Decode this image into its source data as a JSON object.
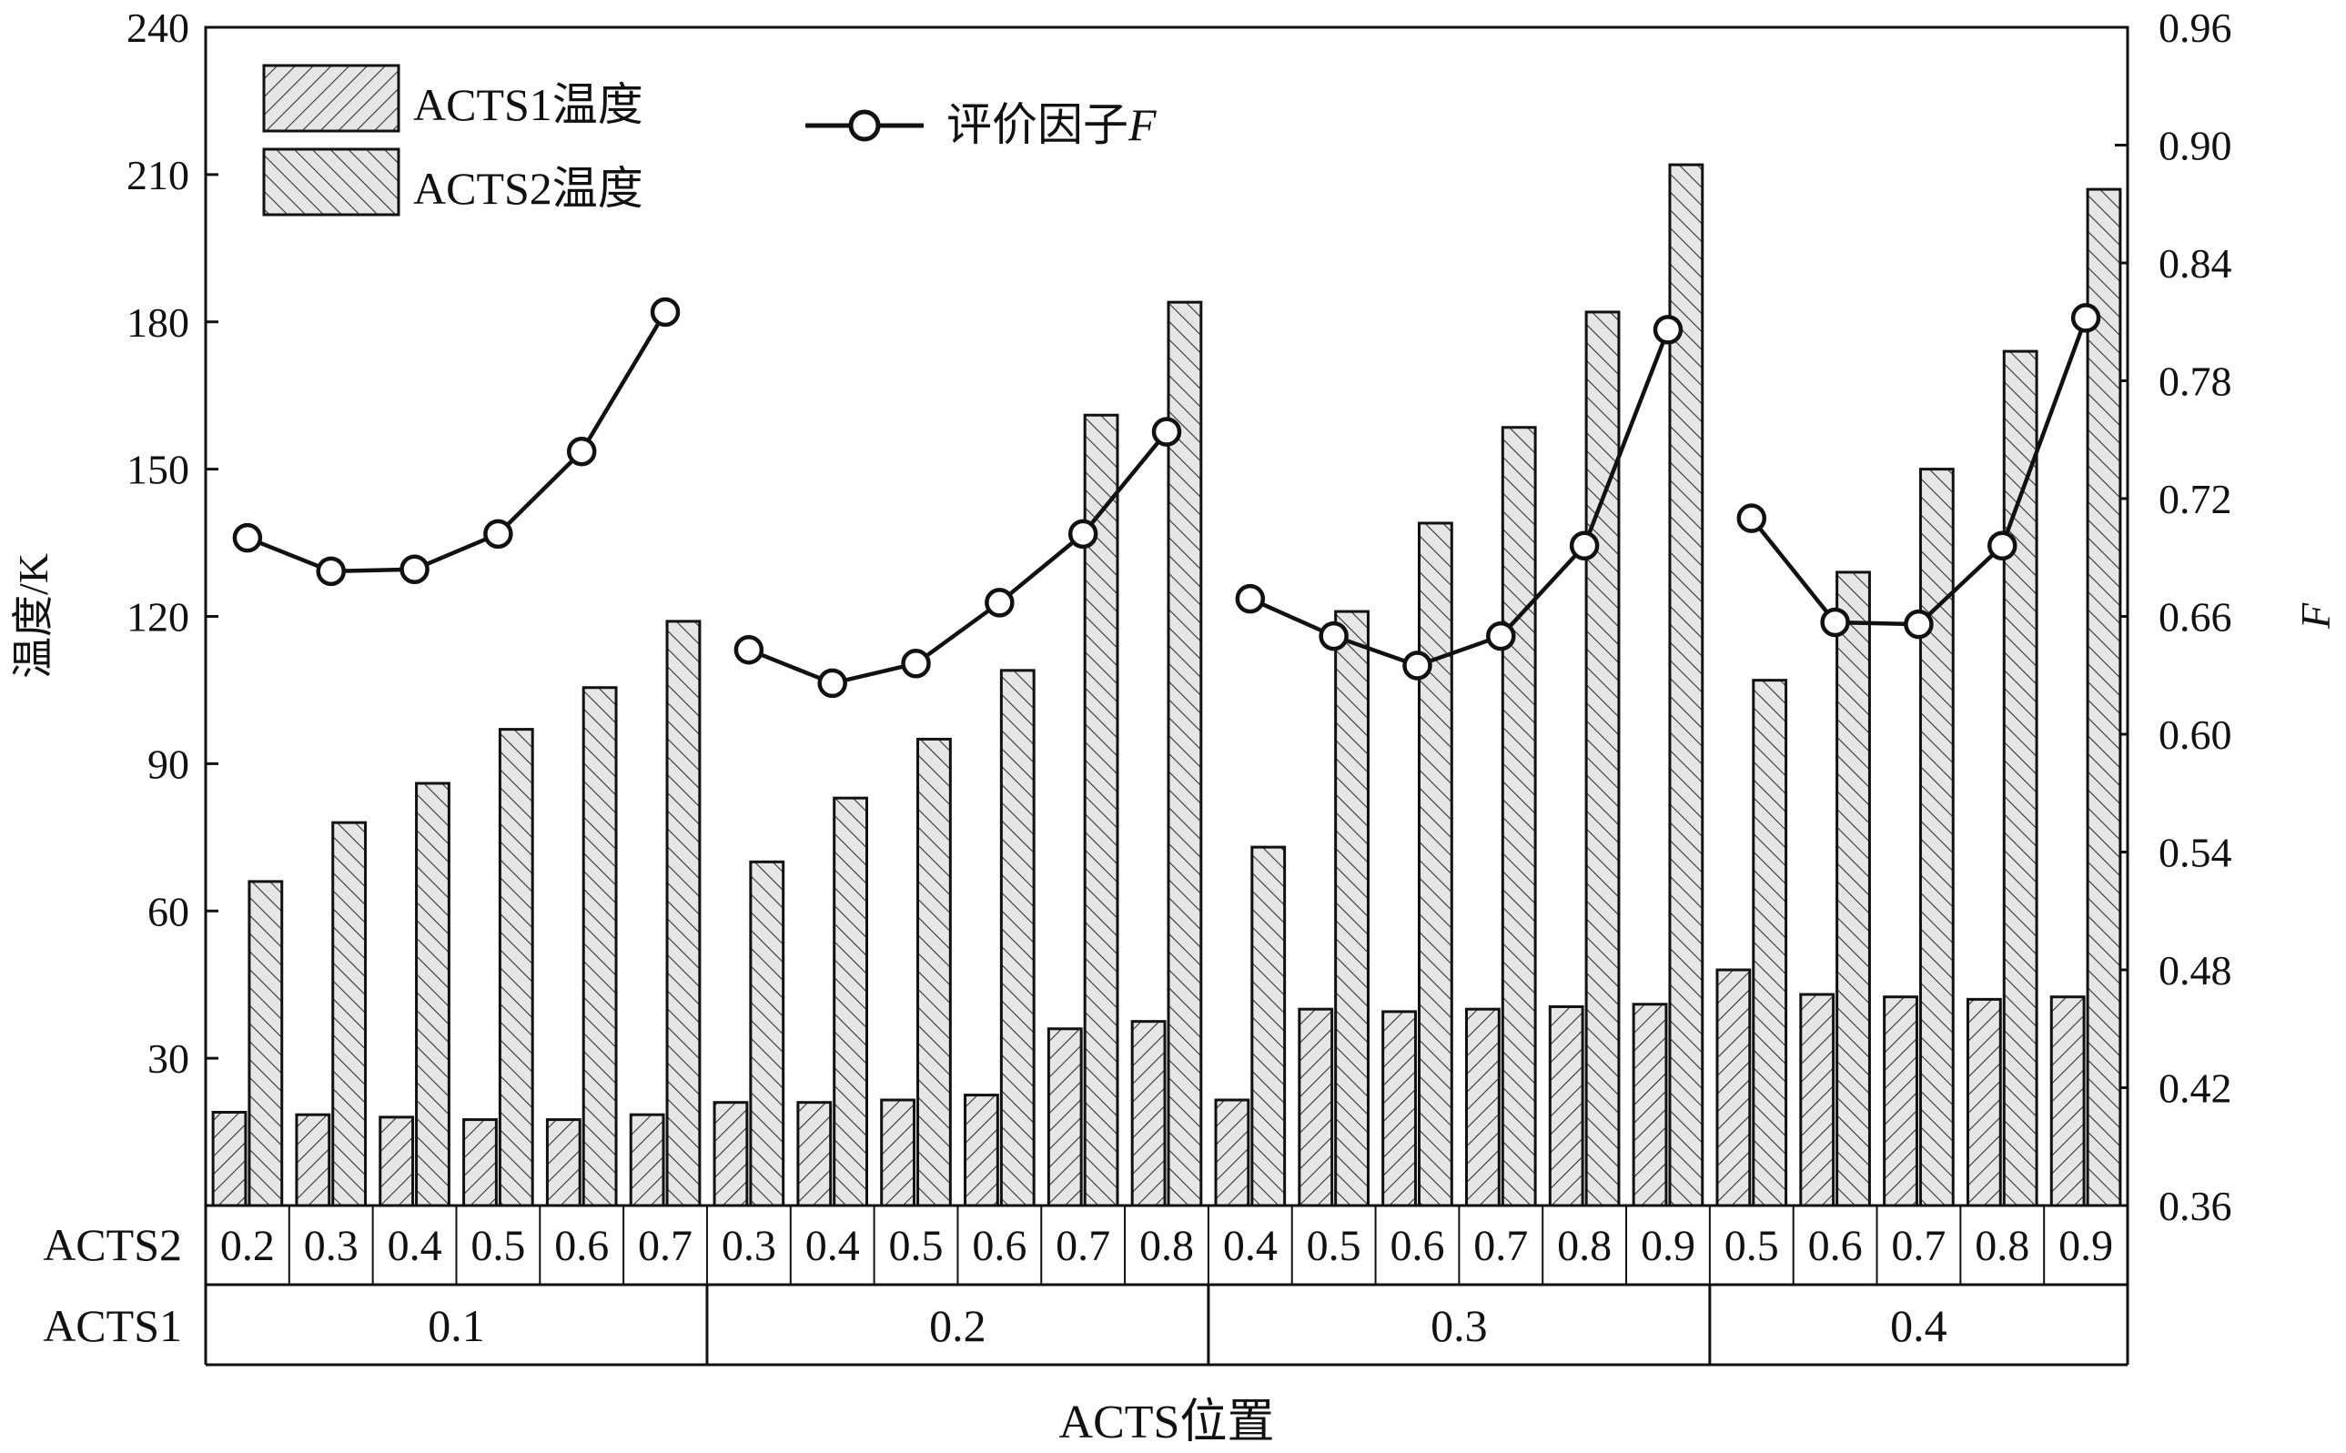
{
  "chart_data": {
    "type": "bar",
    "xlabel": "ACTS位置",
    "ylabel": "温度/K",
    "y2label": "F",
    "ylim": [
      0,
      240
    ],
    "y2lim": [
      0.36,
      0.96
    ],
    "yticks": [
      "30",
      "60",
      "90",
      "120",
      "150",
      "180",
      "210",
      "240"
    ],
    "y2ticks": [
      "0.36",
      "0.42",
      "0.48",
      "0.54",
      "0.60",
      "0.66",
      "0.72",
      "0.78",
      "0.84",
      "0.90",
      "0.96"
    ],
    "row_labels": {
      "acts2": "ACTS2",
      "acts1": "ACTS1"
    },
    "groups": [
      {
        "acts1": "0.1",
        "acts2": [
          "0.2",
          "0.3",
          "0.4",
          "0.5",
          "0.6",
          "0.7"
        ]
      },
      {
        "acts1": "0.2",
        "acts2": [
          "0.3",
          "0.4",
          "0.5",
          "0.6",
          "0.7",
          "0.8"
        ]
      },
      {
        "acts1": "0.3",
        "acts2": [
          "0.4",
          "0.5",
          "0.6",
          "0.7",
          "0.8",
          "0.9"
        ]
      },
      {
        "acts1": "0.4",
        "acts2": [
          "0.5",
          "0.6",
          "0.7",
          "0.8",
          "0.9"
        ]
      }
    ],
    "series": [
      {
        "name": "ACTS1温度",
        "axis": "left",
        "values": [
          19,
          18.5,
          18,
          17.5,
          17.5,
          18.5,
          21,
          21,
          21.5,
          22.5,
          36,
          37.5,
          21.5,
          40,
          39.5,
          40,
          40.5,
          41,
          48,
          43,
          42.5,
          42,
          42.5
        ]
      },
      {
        "name": "ACTS2温度",
        "axis": "left",
        "values": [
          66,
          78,
          86,
          97,
          105.5,
          119,
          70,
          83,
          95,
          109,
          161,
          184,
          73,
          121,
          139,
          158.5,
          182,
          212,
          107,
          129,
          150,
          174,
          207
        ]
      },
      {
        "name": "评价因子F",
        "axis": "right",
        "values": [
          0.7,
          0.683,
          0.684,
          0.702,
          0.744,
          0.815,
          0.643,
          0.626,
          0.636,
          0.667,
          0.702,
          0.754,
          0.669,
          0.65,
          0.635,
          0.65,
          0.696,
          0.806,
          0.71,
          0.657,
          0.656,
          0.696,
          0.812
        ]
      }
    ],
    "legend": {
      "bars": [
        "ACTS1温度",
        "ACTS2温度"
      ],
      "line_prefix": "评价因子",
      "line_var": "F"
    },
    "colors": {
      "ink": "#111111",
      "bar_fill": "#dcdcdc",
      "marker_fill": "#ffffff"
    }
  }
}
